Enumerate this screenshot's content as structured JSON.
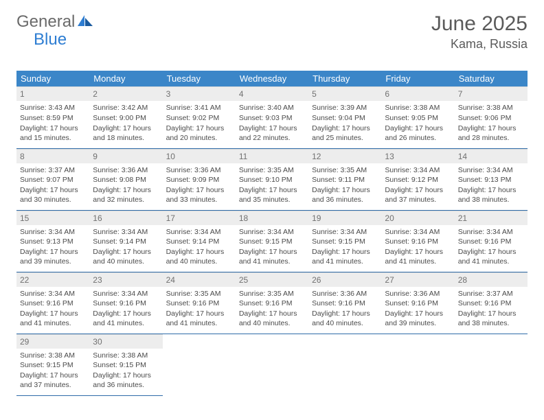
{
  "logo": {
    "part1": "General",
    "part2": "Blue"
  },
  "title": "June 2025",
  "location": "Kama, Russia",
  "colors": {
    "header_bg": "#3b86c8",
    "header_text": "#ffffff",
    "daynum_bg": "#ededed",
    "daynum_text": "#707070",
    "cell_border": "#2d6aa8",
    "body_text": "#4a4a4a",
    "logo_gray": "#6a6a6a",
    "logo_blue": "#2d7dd2"
  },
  "dow": [
    "Sunday",
    "Monday",
    "Tuesday",
    "Wednesday",
    "Thursday",
    "Friday",
    "Saturday"
  ],
  "weeks": [
    [
      {
        "n": 1,
        "sunrise": "3:43 AM",
        "sunset": "8:59 PM",
        "dl_h": 17,
        "dl_m": 15
      },
      {
        "n": 2,
        "sunrise": "3:42 AM",
        "sunset": "9:00 PM",
        "dl_h": 17,
        "dl_m": 18
      },
      {
        "n": 3,
        "sunrise": "3:41 AM",
        "sunset": "9:02 PM",
        "dl_h": 17,
        "dl_m": 20
      },
      {
        "n": 4,
        "sunrise": "3:40 AM",
        "sunset": "9:03 PM",
        "dl_h": 17,
        "dl_m": 22
      },
      {
        "n": 5,
        "sunrise": "3:39 AM",
        "sunset": "9:04 PM",
        "dl_h": 17,
        "dl_m": 25
      },
      {
        "n": 6,
        "sunrise": "3:38 AM",
        "sunset": "9:05 PM",
        "dl_h": 17,
        "dl_m": 26
      },
      {
        "n": 7,
        "sunrise": "3:38 AM",
        "sunset": "9:06 PM",
        "dl_h": 17,
        "dl_m": 28
      }
    ],
    [
      {
        "n": 8,
        "sunrise": "3:37 AM",
        "sunset": "9:07 PM",
        "dl_h": 17,
        "dl_m": 30
      },
      {
        "n": 9,
        "sunrise": "3:36 AM",
        "sunset": "9:08 PM",
        "dl_h": 17,
        "dl_m": 32
      },
      {
        "n": 10,
        "sunrise": "3:36 AM",
        "sunset": "9:09 PM",
        "dl_h": 17,
        "dl_m": 33
      },
      {
        "n": 11,
        "sunrise": "3:35 AM",
        "sunset": "9:10 PM",
        "dl_h": 17,
        "dl_m": 35
      },
      {
        "n": 12,
        "sunrise": "3:35 AM",
        "sunset": "9:11 PM",
        "dl_h": 17,
        "dl_m": 36
      },
      {
        "n": 13,
        "sunrise": "3:34 AM",
        "sunset": "9:12 PM",
        "dl_h": 17,
        "dl_m": 37
      },
      {
        "n": 14,
        "sunrise": "3:34 AM",
        "sunset": "9:13 PM",
        "dl_h": 17,
        "dl_m": 38
      }
    ],
    [
      {
        "n": 15,
        "sunrise": "3:34 AM",
        "sunset": "9:13 PM",
        "dl_h": 17,
        "dl_m": 39
      },
      {
        "n": 16,
        "sunrise": "3:34 AM",
        "sunset": "9:14 PM",
        "dl_h": 17,
        "dl_m": 40
      },
      {
        "n": 17,
        "sunrise": "3:34 AM",
        "sunset": "9:14 PM",
        "dl_h": 17,
        "dl_m": 40
      },
      {
        "n": 18,
        "sunrise": "3:34 AM",
        "sunset": "9:15 PM",
        "dl_h": 17,
        "dl_m": 41
      },
      {
        "n": 19,
        "sunrise": "3:34 AM",
        "sunset": "9:15 PM",
        "dl_h": 17,
        "dl_m": 41
      },
      {
        "n": 20,
        "sunrise": "3:34 AM",
        "sunset": "9:16 PM",
        "dl_h": 17,
        "dl_m": 41
      },
      {
        "n": 21,
        "sunrise": "3:34 AM",
        "sunset": "9:16 PM",
        "dl_h": 17,
        "dl_m": 41
      }
    ],
    [
      {
        "n": 22,
        "sunrise": "3:34 AM",
        "sunset": "9:16 PM",
        "dl_h": 17,
        "dl_m": 41
      },
      {
        "n": 23,
        "sunrise": "3:34 AM",
        "sunset": "9:16 PM",
        "dl_h": 17,
        "dl_m": 41
      },
      {
        "n": 24,
        "sunrise": "3:35 AM",
        "sunset": "9:16 PM",
        "dl_h": 17,
        "dl_m": 41
      },
      {
        "n": 25,
        "sunrise": "3:35 AM",
        "sunset": "9:16 PM",
        "dl_h": 17,
        "dl_m": 40
      },
      {
        "n": 26,
        "sunrise": "3:36 AM",
        "sunset": "9:16 PM",
        "dl_h": 17,
        "dl_m": 40
      },
      {
        "n": 27,
        "sunrise": "3:36 AM",
        "sunset": "9:16 PM",
        "dl_h": 17,
        "dl_m": 39
      },
      {
        "n": 28,
        "sunrise": "3:37 AM",
        "sunset": "9:16 PM",
        "dl_h": 17,
        "dl_m": 38
      }
    ],
    [
      {
        "n": 29,
        "sunrise": "3:38 AM",
        "sunset": "9:15 PM",
        "dl_h": 17,
        "dl_m": 37
      },
      {
        "n": 30,
        "sunrise": "3:38 AM",
        "sunset": "9:15 PM",
        "dl_h": 17,
        "dl_m": 36
      },
      null,
      null,
      null,
      null,
      null
    ]
  ]
}
